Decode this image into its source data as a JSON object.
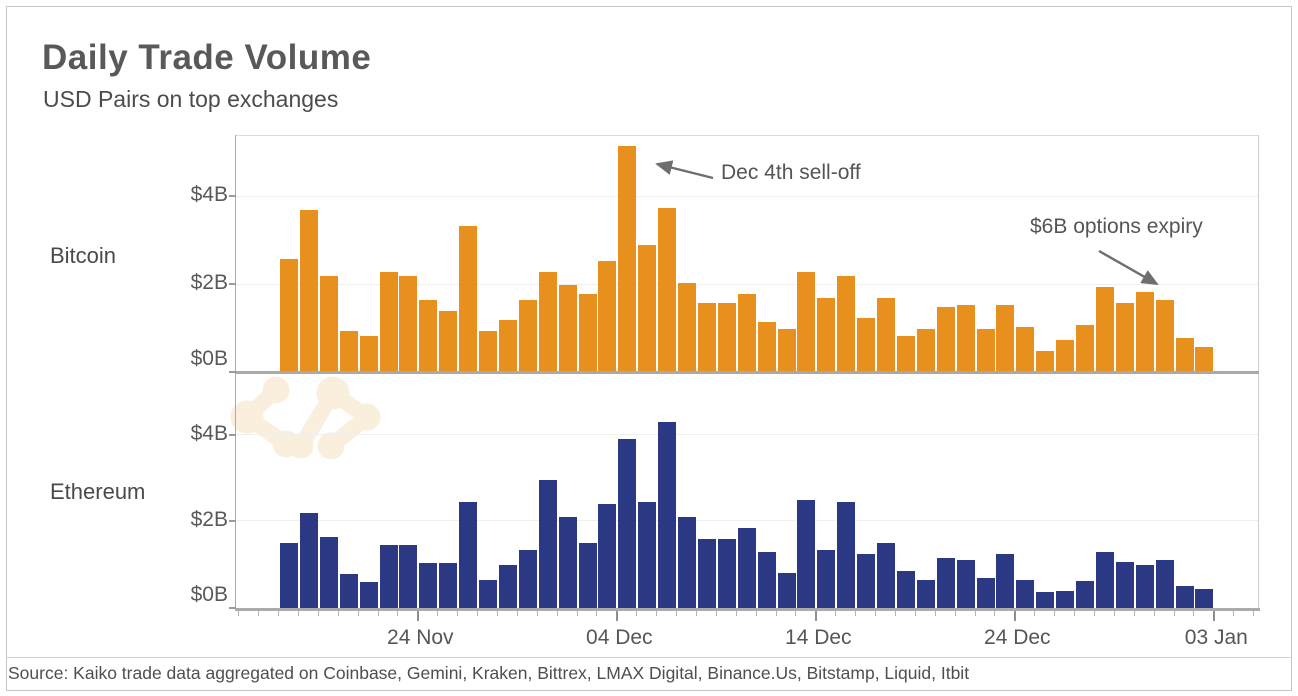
{
  "header": {
    "title": "Daily Trade Volume",
    "subtitle": "USD Pairs on top exchanges"
  },
  "panels": {
    "bitcoin_label": "Bitcoin",
    "ethereum_label": "Ethereum"
  },
  "annotations": [
    {
      "text": "Dec 4th sell-off",
      "points_to": "Bitcoin bar on 04 Dec"
    },
    {
      "text": "$6B options expiry",
      "points_to": "Bitcoin bar on 31 Dec"
    }
  ],
  "footer": {
    "source": "Source: Kaiko trade data aggregated on Coinbase, Gemini, Kraken, Bittrex, LMAX Digital, Binance.Us, Bitstamp, Liquid, Itbit"
  },
  "colors": {
    "bitcoin_bar": "#e8901e",
    "ethereum_bar": "#2b3884",
    "annotation_arrow": "#6e6e6e",
    "watermark": "#faeedd",
    "axis": "#ababab",
    "gridline": "#efefef",
    "text_gray": "#595959"
  },
  "chart_data": {
    "type": "bar",
    "title": "Daily Trade Volume",
    "subtitle": "USD Pairs on top exchanges",
    "unit": "billions of USD per day",
    "grid": true,
    "ylim": [
      0,
      5.4
    ],
    "yticks": [
      {
        "value": 0,
        "label": "$0B"
      },
      {
        "value": 2,
        "label": "$2B"
      },
      {
        "value": 4,
        "label": "$4B"
      }
    ],
    "xticklabels": [
      {
        "label": "24 Nov",
        "day_index": 7
      },
      {
        "label": "04 Dec",
        "day_index": 17
      },
      {
        "label": "14 Dec",
        "day_index": 27
      },
      {
        "label": "24 Dec",
        "day_index": 37
      },
      {
        "label": "03 Jan",
        "day_index": 47
      }
    ],
    "x": [
      "17 Nov",
      "18 Nov",
      "19 Nov",
      "20 Nov",
      "21 Nov",
      "22 Nov",
      "23 Nov",
      "24 Nov",
      "25 Nov",
      "26 Nov",
      "27 Nov",
      "28 Nov",
      "29 Nov",
      "30 Nov",
      "01 Dec",
      "02 Dec",
      "03 Dec",
      "04 Dec",
      "05 Dec",
      "06 Dec",
      "07 Dec",
      "08 Dec",
      "09 Dec",
      "10 Dec",
      "11 Dec",
      "12 Dec",
      "13 Dec",
      "14 Dec",
      "15 Dec",
      "16 Dec",
      "17 Dec",
      "18 Dec",
      "19 Dec",
      "20 Dec",
      "21 Dec",
      "22 Dec",
      "23 Dec",
      "24 Dec",
      "25 Dec",
      "26 Dec",
      "27 Dec",
      "28 Dec",
      "29 Dec",
      "30 Dec",
      "31 Dec",
      "01 Jan",
      "02 Jan"
    ],
    "series": [
      {
        "name": "Bitcoin",
        "color": "#e8901e",
        "values": [
          2.6,
          3.7,
          2.2,
          0.95,
          0.85,
          2.3,
          2.2,
          1.65,
          1.4,
          3.35,
          0.95,
          1.2,
          1.65,
          2.3,
          2.0,
          1.8,
          2.55,
          5.15,
          2.9,
          3.75,
          2.05,
          1.6,
          1.6,
          1.8,
          1.15,
          1.0,
          2.3,
          1.7,
          2.2,
          1.25,
          1.7,
          0.85,
          1.0,
          1.5,
          1.55,
          1.0,
          1.55,
          1.05,
          0.5,
          0.75,
          1.1,
          1.95,
          1.6,
          1.85,
          1.65,
          0.8,
          0.6
        ]
      },
      {
        "name": "Ethereum",
        "color": "#2b3884",
        "values": [
          1.5,
          2.2,
          1.65,
          0.78,
          0.6,
          1.45,
          1.45,
          1.05,
          1.05,
          2.45,
          0.65,
          1.0,
          1.35,
          2.95,
          2.1,
          1.5,
          2.4,
          3.9,
          2.45,
          4.3,
          2.1,
          1.6,
          1.6,
          1.85,
          1.3,
          0.8,
          2.5,
          1.35,
          2.45,
          1.25,
          1.5,
          0.85,
          0.65,
          1.15,
          1.1,
          0.7,
          1.25,
          0.65,
          0.38,
          0.4,
          0.62,
          1.3,
          1.07,
          1.0,
          1.1,
          0.5,
          0.45
        ]
      }
    ]
  }
}
